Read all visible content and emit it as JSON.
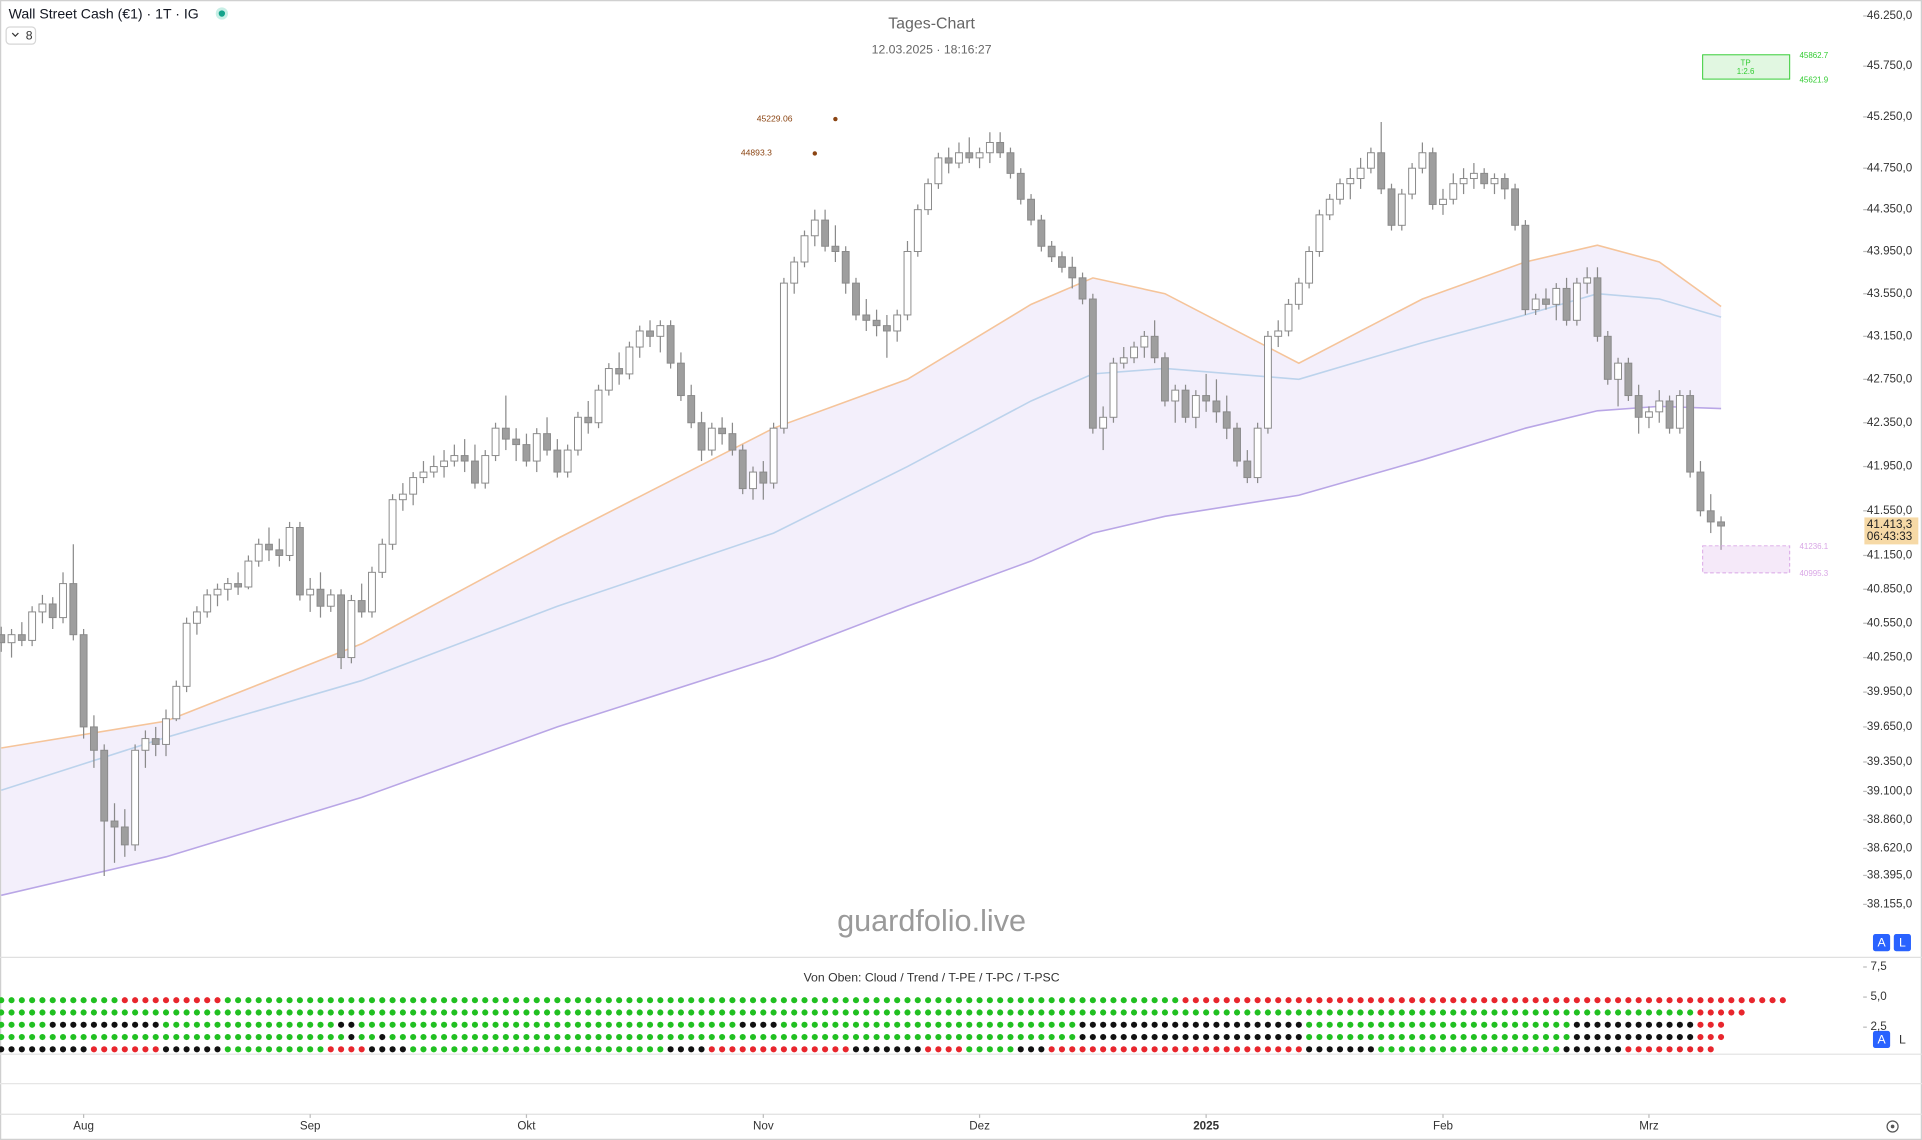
{
  "ui": {
    "symbol_title": "Wall Street Cash (€1) · 1T · IG",
    "interval_count": "8",
    "watermark": "guardfolio.live",
    "buttons": [
      "A",
      "L"
    ]
  },
  "chart_data": {
    "type": "candlestick",
    "title": "Tages-Chart",
    "subtitle": "12.03.2025 · 18:16:27",
    "log_scale": true,
    "grid": false,
    "ylim": [
      37730,
      46410
    ],
    "yticks": [
      {
        "value": 46250,
        "label": "46.250,0"
      },
      {
        "value": 45750,
        "label": "45.750,0"
      },
      {
        "value": 45250,
        "label": "45.250,0"
      },
      {
        "value": 44750,
        "label": "44.750,0"
      },
      {
        "value": 44350,
        "label": "44.350,0"
      },
      {
        "value": 43950,
        "label": "43.950,0"
      },
      {
        "value": 43550,
        "label": "43.550,0"
      },
      {
        "value": 43150,
        "label": "43.150,0"
      },
      {
        "value": 42750,
        "label": "42.750,0"
      },
      {
        "value": 42350,
        "label": "42.350,0"
      },
      {
        "value": 41950,
        "label": "41.950,0"
      },
      {
        "value": 41550,
        "label": "41.550,0"
      },
      {
        "value": 41150,
        "label": "41.150,0"
      },
      {
        "value": 40850,
        "label": "40.850,0"
      },
      {
        "value": 40550,
        "label": "40.550,0"
      },
      {
        "value": 40250,
        "label": "40.250,0"
      },
      {
        "value": 39950,
        "label": "39.950,0"
      },
      {
        "value": 39650,
        "label": "39.650,0"
      },
      {
        "value": 39350,
        "label": "39.350,0"
      },
      {
        "value": 39100,
        "label": "39.100,0"
      },
      {
        "value": 38860,
        "label": "38.860,0"
      },
      {
        "value": 38620,
        "label": "38.620,0"
      },
      {
        "value": 38395,
        "label": "38.395,0"
      },
      {
        "value": 38155,
        "label": "38.155,0"
      }
    ],
    "xlim": [
      -0.12,
      180.8
    ],
    "xticks": [
      {
        "value": 8,
        "label": "Aug"
      },
      {
        "value": 30,
        "label": "Sep"
      },
      {
        "value": 51,
        "label": "Okt"
      },
      {
        "value": 74,
        "label": "Nov"
      },
      {
        "value": 95,
        "label": "Dez"
      },
      {
        "value": 117,
        "label": "2025"
      },
      {
        "value": 140,
        "label": "Feb"
      },
      {
        "value": 160,
        "label": "Mrz"
      }
    ],
    "up_color": "#ffffff",
    "down_color": "#9e9e9e",
    "wick_color": "#8a8a8a",
    "ohlc": [
      [
        40450,
        40520,
        40300,
        40380
      ],
      [
        40380,
        40500,
        40250,
        40450
      ],
      [
        40450,
        40560,
        40350,
        40400
      ],
      [
        40400,
        40700,
        40350,
        40650
      ],
      [
        40650,
        40800,
        40550,
        40720
      ],
      [
        40720,
        40780,
        40500,
        40600
      ],
      [
        40600,
        41000,
        40550,
        40900
      ],
      [
        40900,
        41250,
        40400,
        40450
      ],
      [
        40450,
        40500,
        39550,
        39650
      ],
      [
        39650,
        39750,
        39300,
        39450
      ],
      [
        39450,
        39500,
        38390,
        38850
      ],
      [
        38850,
        39000,
        38500,
        38800
      ],
      [
        38800,
        38950,
        38550,
        38650
      ],
      [
        38650,
        39500,
        38600,
        39450
      ],
      [
        39450,
        39620,
        39300,
        39550
      ],
      [
        39550,
        39650,
        39400,
        39500
      ],
      [
        39500,
        39800,
        39400,
        39720
      ],
      [
        39720,
        40050,
        39700,
        40000
      ],
      [
        40000,
        40600,
        39950,
        40550
      ],
      [
        40550,
        40700,
        40450,
        40650
      ],
      [
        40650,
        40850,
        40600,
        40800
      ],
      [
        40800,
        40900,
        40700,
        40850
      ],
      [
        40850,
        40950,
        40750,
        40900
      ],
      [
        40900,
        41000,
        40800,
        40870
      ],
      [
        40870,
        41150,
        40850,
        41100
      ],
      [
        41100,
        41300,
        41050,
        41250
      ],
      [
        41250,
        41400,
        41100,
        41200
      ],
      [
        41200,
        41300,
        41050,
        41150
      ],
      [
        41150,
        41450,
        41100,
        41400
      ],
      [
        41400,
        41450,
        40750,
        40800
      ],
      [
        40800,
        40950,
        40650,
        40850
      ],
      [
        40850,
        41000,
        40600,
        40700
      ],
      [
        40700,
        40850,
        40650,
        40800
      ],
      [
        40800,
        40850,
        40150,
        40250
      ],
      [
        40250,
        40800,
        40200,
        40750
      ],
      [
        40750,
        40900,
        40600,
        40650
      ],
      [
        40650,
        41050,
        40600,
        41000
      ],
      [
        41000,
        41300,
        40950,
        41250
      ],
      [
        41250,
        41700,
        41200,
        41650
      ],
      [
        41650,
        41800,
        41550,
        41700
      ],
      [
        41700,
        41900,
        41600,
        41850
      ],
      [
        41850,
        42000,
        41800,
        41900
      ],
      [
        41900,
        42050,
        41850,
        41950
      ],
      [
        41950,
        42100,
        41850,
        42000
      ],
      [
        42000,
        42150,
        41950,
        42050
      ],
      [
        42050,
        42200,
        41900,
        42000
      ],
      [
        42000,
        42150,
        41750,
        41800
      ],
      [
        41800,
        42100,
        41750,
        42050
      ],
      [
        42050,
        42350,
        42000,
        42300
      ],
      [
        42300,
        42600,
        42100,
        42200
      ],
      [
        42200,
        42300,
        42000,
        42150
      ],
      [
        42150,
        42250,
        41950,
        42000
      ],
      [
        42000,
        42300,
        41900,
        42250
      ],
      [
        42250,
        42400,
        42050,
        42100
      ],
      [
        42100,
        42200,
        41850,
        41900
      ],
      [
        41900,
        42150,
        41850,
        42100
      ],
      [
        42100,
        42450,
        42050,
        42400
      ],
      [
        42400,
        42550,
        42250,
        42350
      ],
      [
        42350,
        42700,
        42300,
        42650
      ],
      [
        42650,
        42900,
        42600,
        42850
      ],
      [
        42850,
        43000,
        42700,
        42800
      ],
      [
        42800,
        43100,
        42750,
        43050
      ],
      [
        43050,
        43250,
        42950,
        43200
      ],
      [
        43200,
        43300,
        43050,
        43150
      ],
      [
        43150,
        43300,
        43000,
        43250
      ],
      [
        43250,
        43300,
        42850,
        42900
      ],
      [
        42900,
        43000,
        42550,
        42600
      ],
      [
        42600,
        42700,
        42300,
        42350
      ],
      [
        42350,
        42450,
        42000,
        42100
      ],
      [
        42100,
        42350,
        42050,
        42300
      ],
      [
        42300,
        42400,
        42150,
        42250
      ],
      [
        42250,
        42350,
        42050,
        42100
      ],
      [
        42100,
        42150,
        41700,
        41750
      ],
      [
        41750,
        41950,
        41650,
        41900
      ],
      [
        41900,
        42000,
        41650,
        41800
      ],
      [
        41800,
        42350,
        41750,
        42300
      ],
      [
        42300,
        43700,
        42250,
        43650
      ],
      [
        43650,
        43900,
        43550,
        43850
      ],
      [
        43850,
        44150,
        43800,
        44100
      ],
      [
        44100,
        44350,
        44000,
        44250
      ],
      [
        44250,
        44350,
        43950,
        44000
      ],
      [
        44000,
        44200,
        43850,
        43950
      ],
      [
        43950,
        44000,
        43550,
        43650
      ],
      [
        43650,
        43700,
        43300,
        43350
      ],
      [
        43350,
        43500,
        43200,
        43300
      ],
      [
        43300,
        43400,
        43150,
        43250
      ],
      [
        43250,
        43350,
        42950,
        43200
      ],
      [
        43200,
        43400,
        43100,
        43350
      ],
      [
        43350,
        44050,
        43300,
        43950
      ],
      [
        43950,
        44400,
        43900,
        44350
      ],
      [
        44350,
        44650,
        44300,
        44600
      ],
      [
        44600,
        44900,
        44550,
        44850
      ],
      [
        44850,
        44950,
        44700,
        44800
      ],
      [
        44800,
        45000,
        44750,
        44900
      ],
      [
        44900,
        45050,
        44800,
        44850
      ],
      [
        44850,
        44950,
        44750,
        44900
      ],
      [
        44900,
        45100,
        44800,
        45000
      ],
      [
        45000,
        45100,
        44850,
        44900
      ],
      [
        44900,
        44950,
        44650,
        44700
      ],
      [
        44700,
        44750,
        44400,
        44450
      ],
      [
        44450,
        44500,
        44200,
        44250
      ],
      [
        44250,
        44300,
        43950,
        44000
      ],
      [
        44000,
        44050,
        43850,
        43900
      ],
      [
        43900,
        43950,
        43750,
        43800
      ],
      [
        43800,
        43900,
        43600,
        43700
      ],
      [
        43700,
        43750,
        43450,
        43500
      ],
      [
        43500,
        43550,
        42250,
        42300
      ],
      [
        42300,
        42500,
        42100,
        42400
      ],
      [
        42400,
        42950,
        42350,
        42900
      ],
      [
        42900,
        43050,
        42850,
        42950
      ],
      [
        42950,
        43100,
        42900,
        43050
      ],
      [
        43050,
        43200,
        42950,
        43150
      ],
      [
        43150,
        43300,
        42900,
        42950
      ],
      [
        42950,
        43000,
        42500,
        42550
      ],
      [
        42550,
        42700,
        42350,
        42650
      ],
      [
        42650,
        42700,
        42350,
        42400
      ],
      [
        42400,
        42650,
        42300,
        42600
      ],
      [
        42600,
        42800,
        42450,
        42550
      ],
      [
        42550,
        42750,
        42350,
        42450
      ],
      [
        42450,
        42600,
        42200,
        42300
      ],
      [
        42300,
        42350,
        41950,
        42000
      ],
      [
        42000,
        42100,
        41800,
        41850
      ],
      [
        41850,
        42350,
        41800,
        42300
      ],
      [
        42300,
        43200,
        42250,
        43150
      ],
      [
        43150,
        43300,
        43050,
        43200
      ],
      [
        43200,
        43500,
        43150,
        43450
      ],
      [
        43450,
        43700,
        43400,
        43650
      ],
      [
        43650,
        44000,
        43600,
        43950
      ],
      [
        43950,
        44350,
        43900,
        44300
      ],
      [
        44300,
        44500,
        44250,
        44450
      ],
      [
        44450,
        44650,
        44400,
        44600
      ],
      [
        44600,
        44750,
        44450,
        44650
      ],
      [
        44650,
        44850,
        44550,
        44750
      ],
      [
        44750,
        44950,
        44700,
        44900
      ],
      [
        44900,
        45200,
        44500,
        44550
      ],
      [
        44550,
        44600,
        44150,
        44200
      ],
      [
        44200,
        44550,
        44150,
        44500
      ],
      [
        44500,
        44800,
        44450,
        44750
      ],
      [
        44750,
        45000,
        44700,
        44900
      ],
      [
        44900,
        44950,
        44350,
        44400
      ],
      [
        44400,
        44550,
        44300,
        44450
      ],
      [
        44450,
        44700,
        44400,
        44600
      ],
      [
        44600,
        44750,
        44500,
        44650
      ],
      [
        44650,
        44800,
        44550,
        44700
      ],
      [
        44700,
        44750,
        44550,
        44600
      ],
      [
        44600,
        44700,
        44500,
        44650
      ],
      [
        44650,
        44700,
        44450,
        44550
      ],
      [
        44550,
        44600,
        44150,
        44200
      ],
      [
        44200,
        44250,
        43350,
        43400
      ],
      [
        43400,
        43550,
        43350,
        43500
      ],
      [
        43500,
        43600,
        43400,
        43450
      ],
      [
        43450,
        43650,
        43300,
        43600
      ],
      [
        43600,
        43700,
        43250,
        43300
      ],
      [
        43300,
        43700,
        43250,
        43650
      ],
      [
        43650,
        43800,
        43550,
        43700
      ],
      [
        43700,
        43800,
        43100,
        43150
      ],
      [
        43150,
        43200,
        42700,
        42750
      ],
      [
        42750,
        42950,
        42500,
        42900
      ],
      [
        42900,
        42950,
        42550,
        42600
      ],
      [
        42600,
        42700,
        42250,
        42400
      ],
      [
        42400,
        42500,
        42300,
        42450
      ],
      [
        42450,
        42650,
        42350,
        42550
      ],
      [
        42550,
        42600,
        42250,
        42300
      ],
      [
        42300,
        42650,
        42250,
        42600
      ],
      [
        42600,
        42650,
        41850,
        41900
      ],
      [
        41900,
        42000,
        41500,
        41550
      ],
      [
        41550,
        41700,
        41350,
        41450
      ],
      [
        41450,
        41500,
        41200,
        41413.3
      ]
    ],
    "series": [
      {
        "color": "#f5c49a",
        "x": [
          0,
          16,
          35,
          54,
          75,
          88,
          100,
          106,
          113,
          126,
          138,
          148,
          155,
          161,
          167
        ],
        "values": [
          39470,
          39700,
          40370,
          41300,
          42300,
          42750,
          43450,
          43700,
          43550,
          42900,
          43500,
          43850,
          44010,
          43850,
          43430
        ]
      },
      {
        "color": "#bcd3ec",
        "x": [
          0,
          16,
          35,
          54,
          75,
          88,
          100,
          106,
          113,
          126,
          138,
          148,
          155,
          161,
          167
        ],
        "values": [
          39110,
          39560,
          40050,
          40700,
          41350,
          41950,
          42550,
          42800,
          42850,
          42750,
          43090,
          43350,
          43550,
          43500,
          43330
        ]
      },
      {
        "color": "#b9a6e6",
        "x": [
          0,
          16,
          35,
          54,
          75,
          88,
          100,
          106,
          113,
          126,
          138,
          148,
          155,
          161,
          167
        ],
        "values": [
          38230,
          38550,
          39050,
          39650,
          40250,
          40700,
          41100,
          41350,
          41500,
          41690,
          42010,
          42300,
          42460,
          42500,
          42480
        ]
      }
    ],
    "cloud_color": "#e9e2f8",
    "last_price": {
      "value": 41413.3,
      "label": "41.413,3"
    },
    "countdown": "06:43:33",
    "last_price_color": "#f6d9a6",
    "annotations": [
      {
        "x": 81,
        "value": 45229.06,
        "label": "45229.06",
        "color": "#8b4513"
      },
      {
        "x": 79,
        "value": 44893.3,
        "label": "44893.3",
        "color": "#8b4513"
      }
    ],
    "tp_box": {
      "label": "TP",
      "ratio": "1:2.6",
      "upper": 45862.7,
      "lower": 45621.9,
      "color": "#33cc33"
    },
    "entry_box": {
      "upper": 41236.1,
      "lower": 40995.3,
      "color": "#d9a6e6"
    },
    "indicator": {
      "title": "Von Oben: Cloud / Trend / T-PE / T-PC / T-PSC",
      "ylim": [
        0,
        8.2
      ],
      "yticks": [
        {
          "value": 7.5,
          "label": "7,5"
        },
        {
          "value": 5,
          "label": "5,0"
        },
        {
          "value": 2.5,
          "label": "2,5"
        }
      ],
      "colors": {
        "g": "#21c021",
        "r": "#e8262d",
        "k": "#111111"
      },
      "rows": [
        "ggggggggggggrrrrrrrrrrgggggggggggggggggggggggggggggggggggggggggggggggggggggggggggggggggggggggggggggggggggggggggggggrrrrrrrrrrrrrrrrrrrrrrrrrrrrrrrrrrrrrrrrrrrrrrrrrrrrrrrrrrr",
        "gggggggggggggggggggggggggggggggggggggggggggggggggggggggggggggggggggggggggggggggggggggggggggggggggggggggggggggggggggggggggggggggggggggggggggggggggggggggggggggggggggggrrrrr",
        "gggggkkkkkkkkkkkgggggggggggggggggkkgggggggggggggggggggggggggggggggggggggkkkkgggggggggggggggggggggggggggggkkkkkkkkkkkkkkkkkkkkkkggggggggggggggggggggggggggkkkkkkkkkkkkrrr",
        "ggggggggggggggggggggggggggggggggggkggkgggggggggggggggggggggggggggggggggggggggggggggggggggggggggggggggggggkkkkkkkkkkkkkkkkkkkkkkggggggggggggggggggggggggggkkkkkkkkkkkkrrr",
        "kkkkkkkkkrrrrrrrkkkkkkggggggggggrrrrkkkkgggggggggggggggggggggggggkkkkrrrrrrrrrrrrrrkkkkkkkrrrrgggggkkkrrrrrrrrrrrrrrrrrrrrrrrrrkkkkkkkggggggggggggggggggkkkkkkrrrrrrrrr"
      ]
    }
  }
}
